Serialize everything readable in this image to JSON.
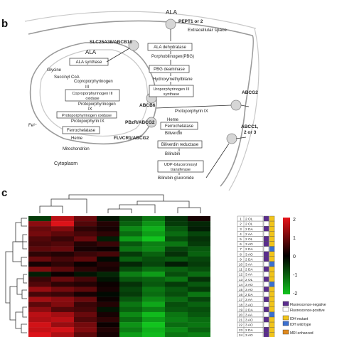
{
  "panel_b": {
    "letter": "b",
    "labels": {
      "ala_top": "ALA",
      "pept": "PEPT1 or 2",
      "extracellular": "Extracellular space",
      "slc": "SLC25A38/ABCB10",
      "ala_mito": "ALA",
      "glycine": "Glycine",
      "succinyl": "Succinyl CoA",
      "abcb6": "ABCB6",
      "abcg2": "ABCG2",
      "pbzr": "PBzR/ABCG2",
      "flvcr": "FLVCR1/ABCG2",
      "abcc": "ABCC1,\n2 or 3",
      "fe": "Fe²⁺",
      "heme_mito": "Heme",
      "mitochondrion": "Mitochondrion",
      "cytoplasm": "Cytoplasm",
      "heme_cyto": "Heme",
      "biliverdin": "Biliverdin",
      "bilirubin": "Bilirubin",
      "bilirubin_gluc": "Bilirubin glucronide",
      "ppg9_cyto": "Protoporphyrin IX",
      "copro_gen": "Coproporphyrinogen",
      "copro_gen2": "III",
      "protogen": "Protoporphyrinogen",
      "protogen2": "IX",
      "protogen_mito": "Protoporphyrinogen",
      "hmb": "Hydroxymethylbilane",
      "ppg9_mito": "Protoporphyrin IX",
      "pbg": "Porphobilinogen(PBG)"
    },
    "enzymes": {
      "ala_synthase": "ALA synthase",
      "ala_dehydratase": "ALA dehydratase",
      "pbg_deaminase": "PBG deaminase",
      "uro_synthase": "Uroporphyrinogen III\nsynthase",
      "uro_decarboxylase": "Uroporphyrinogen III\ndecarboxylase",
      "copro_oxidase": "Coproporphyrinogen III\noxidase",
      "proto_oxidase": "Protoporphyrinogen oxidase",
      "ferrochelatase_mito": "Ferrochelatase",
      "ferrochelatase_cyto": "Ferrochelatase",
      "biliverdin_reductase": "Biliverdin reductase",
      "udp": "UDP-Glucoronosyl\ntransferase"
    }
  },
  "panel_c": {
    "letter": "c",
    "colorbar_ticks": [
      "2",
      "1",
      "0",
      "-1",
      "-2"
    ],
    "legend": {
      "fluor_neg": "Fluorescence-negative",
      "fluor_pos": "Fluorescence-positive",
      "idh_mut": "IDH mutant",
      "idh_wt": "IDH wild type",
      "mri": "MRI enhanced"
    },
    "colors": {
      "fluor_neg": "#5b2d8e",
      "fluor_pos": "#ffffff",
      "idh_mut": "#f2c418",
      "idh_wt": "#3a6fd0",
      "mri": "#e08a1e",
      "high": "#e8141a",
      "mid": "#000000",
      "low": "#12c41e"
    },
    "samples": [
      {
        "num": "1",
        "type": "2 OL",
        "fluor": "neg",
        "idh": "mut"
      },
      {
        "num": "2",
        "type": "2 OL",
        "fluor": "pos",
        "idh": "mut"
      },
      {
        "num": "3",
        "type": "2 DA",
        "fluor": "neg",
        "idh": "mut"
      },
      {
        "num": "4",
        "type": "2 AA",
        "fluor": "pos",
        "idh": "mut"
      },
      {
        "num": "5",
        "type": "2 OL",
        "fluor": "neg",
        "idh": "mut"
      },
      {
        "num": "6",
        "type": "3 AO",
        "fluor": "neg",
        "idh": "mut"
      },
      {
        "num": "7",
        "type": "2 DA",
        "fluor": "pos",
        "idh": "wt"
      },
      {
        "num": "8",
        "type": "3 AO",
        "fluor": "neg",
        "idh": "mut"
      },
      {
        "num": "9",
        "type": "2 DA",
        "fluor": "neg",
        "idh": "mut"
      },
      {
        "num": "10",
        "type": "3 AA",
        "fluor": "pos",
        "idh": "wt"
      },
      {
        "num": "11",
        "type": "2 DA",
        "fluor": "neg",
        "idh": "mut"
      },
      {
        "num": "12",
        "type": "3 AA",
        "fluor": "pos",
        "idh": "mut"
      },
      {
        "num": "13",
        "type": "2 OL",
        "fluor": "neg",
        "idh": "mut"
      },
      {
        "num": "14",
        "type": "3 AO",
        "fluor": "pos",
        "idh": "wt"
      },
      {
        "num": "15",
        "type": "3 AO",
        "fluor": "neg",
        "idh": "mut"
      },
      {
        "num": "16",
        "type": "2 DA",
        "fluor": "pos",
        "idh": "mut"
      },
      {
        "num": "17",
        "type": "3 AA",
        "fluor": "neg",
        "idh": "mut"
      },
      {
        "num": "18",
        "type": "3 AO",
        "fluor": "pos",
        "idh": "mut"
      },
      {
        "num": "19",
        "type": "2 DA",
        "fluor": "neg",
        "idh": "mut"
      },
      {
        "num": "20",
        "type": "3 AA",
        "fluor": "pos",
        "idh": "wt"
      },
      {
        "num": "21",
        "type": "3 AO",
        "fluor": "neg",
        "idh": "mut"
      },
      {
        "num": "22",
        "type": "3 AO",
        "fluor": "pos",
        "idh": "mut"
      },
      {
        "num": "23",
        "type": "2 DA",
        "fluor": "neg",
        "idh": "mut"
      },
      {
        "num": "24",
        "type": "3 AO",
        "fluor": "neg",
        "idh": "mut"
      }
    ],
    "heatmap_values": [
      [
        -0.6,
        1.6,
        0.9,
        -0.2,
        -0.8,
        -1.2,
        -0.5,
        0.2
      ],
      [
        1.2,
        1.9,
        0.7,
        0.3,
        -1.0,
        -1.5,
        -0.6,
        -0.4
      ],
      [
        0.9,
        1.1,
        0.4,
        0.2,
        -1.4,
        -1.8,
        -0.9,
        -0.3
      ],
      [
        1.0,
        0.8,
        0.6,
        0.4,
        -1.1,
        -1.6,
        -1.1,
        -0.7
      ],
      [
        0.7,
        0.5,
        0.9,
        -0.3,
        -1.6,
        -2.0,
        -0.8,
        -0.5
      ],
      [
        0.6,
        0.7,
        0.3,
        0.5,
        -0.9,
        -1.3,
        -1.2,
        -0.6
      ],
      [
        0.8,
        0.9,
        0.2,
        0.1,
        -1.2,
        -1.4,
        -0.7,
        -0.9
      ],
      [
        0.4,
        0.3,
        0.5,
        0.6,
        -0.6,
        -1.0,
        -0.5,
        -1.0
      ],
      [
        0.9,
        0.6,
        0.8,
        -0.1,
        -1.0,
        -0.8,
        -0.9,
        -0.7
      ],
      [
        0.2,
        0.4,
        0.1,
        0.3,
        -0.4,
        -0.7,
        -0.3,
        -0.6
      ],
      [
        1.1,
        0.8,
        0.4,
        0.2,
        -0.8,
        -1.1,
        -1.0,
        -0.8
      ],
      [
        -0.3,
        0.1,
        -0.2,
        -0.4,
        -1.3,
        -1.6,
        -0.8,
        -1.1
      ],
      [
        0.5,
        0.9,
        0.6,
        -0.2,
        -0.9,
        -1.0,
        -1.2,
        -0.5
      ],
      [
        0.7,
        0.4,
        0.3,
        0.1,
        -0.5,
        -0.9,
        -0.6,
        -0.9
      ],
      [
        1.3,
        1.0,
        0.8,
        0.2,
        -0.7,
        -1.2,
        -0.9,
        -0.6
      ],
      [
        0.6,
        0.5,
        0.2,
        -0.1,
        -0.6,
        -1.1,
        -0.8,
        -1.2
      ],
      [
        1.4,
        1.2,
        0.9,
        0.1,
        -0.9,
        -1.4,
        -1.1,
        -0.7
      ],
      [
        0.8,
        1.1,
        0.5,
        0.3,
        -1.2,
        -1.7,
        -0.8,
        -1.0
      ],
      [
        1.2,
        0.7,
        0.6,
        -0.2,
        -1.0,
        -1.3,
        -0.9,
        -0.8
      ],
      [
        1.6,
        1.4,
        0.9,
        0.2,
        -1.4,
        -1.9,
        -1.2,
        -0.9
      ],
      [
        1.5,
        1.6,
        0.7,
        0.4,
        -1.1,
        -1.6,
        -1.3,
        -1.1
      ],
      [
        1.8,
        1.3,
        1.0,
        0.1,
        -1.5,
        -2.0,
        -1.1,
        -1.2
      ],
      [
        1.7,
        1.8,
        1.1,
        0.3,
        -1.3,
        -1.8,
        -1.4,
        -1.0
      ],
      [
        1.9,
        1.5,
        0.8,
        0.2,
        -1.6,
        -1.9,
        -1.2,
        -1.3
      ]
    ]
  }
}
